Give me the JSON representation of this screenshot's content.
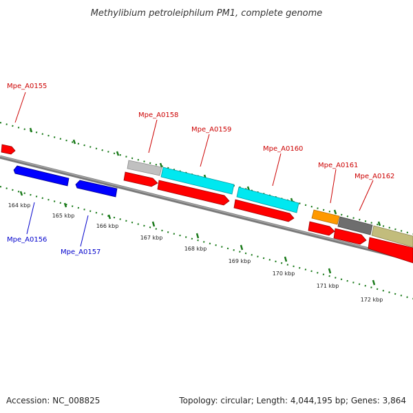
{
  "title": "Methylibium petroleiphilum PM1, complete genome",
  "accession": "Accession: NC_008825",
  "summary": "Topology: circular; Length: 4,044,195 bp; Genes: 3,864",
  "colors": {
    "forward_gene": "#ff0000",
    "reverse_gene": "#0000ff",
    "label_forward": "#cc0000",
    "label_reverse": "#0000cc",
    "backbone": "#808080",
    "ruler": "#1a7a1a"
  },
  "gene_labels": [
    {
      "text": "Mpe_A0155",
      "strand": "forward"
    },
    {
      "text": "Mpe_A0156",
      "strand": "reverse"
    },
    {
      "text": "Mpe_A0157",
      "strand": "reverse"
    },
    {
      "text": "Mpe_A0158",
      "strand": "forward"
    },
    {
      "text": "Mpe_A0159",
      "strand": "forward"
    },
    {
      "text": "Mpe_A0160",
      "strand": "forward"
    },
    {
      "text": "Mpe_A0161",
      "strand": "forward"
    },
    {
      "text": "Mpe_A0162",
      "strand": "forward"
    }
  ],
  "kbp_labels": [
    "164 kbp",
    "165 kbp",
    "166 kbp",
    "167 kbp",
    "168 kbp",
    "169 kbp",
    "170 kbp",
    "171 kbp",
    "172 kbp"
  ]
}
